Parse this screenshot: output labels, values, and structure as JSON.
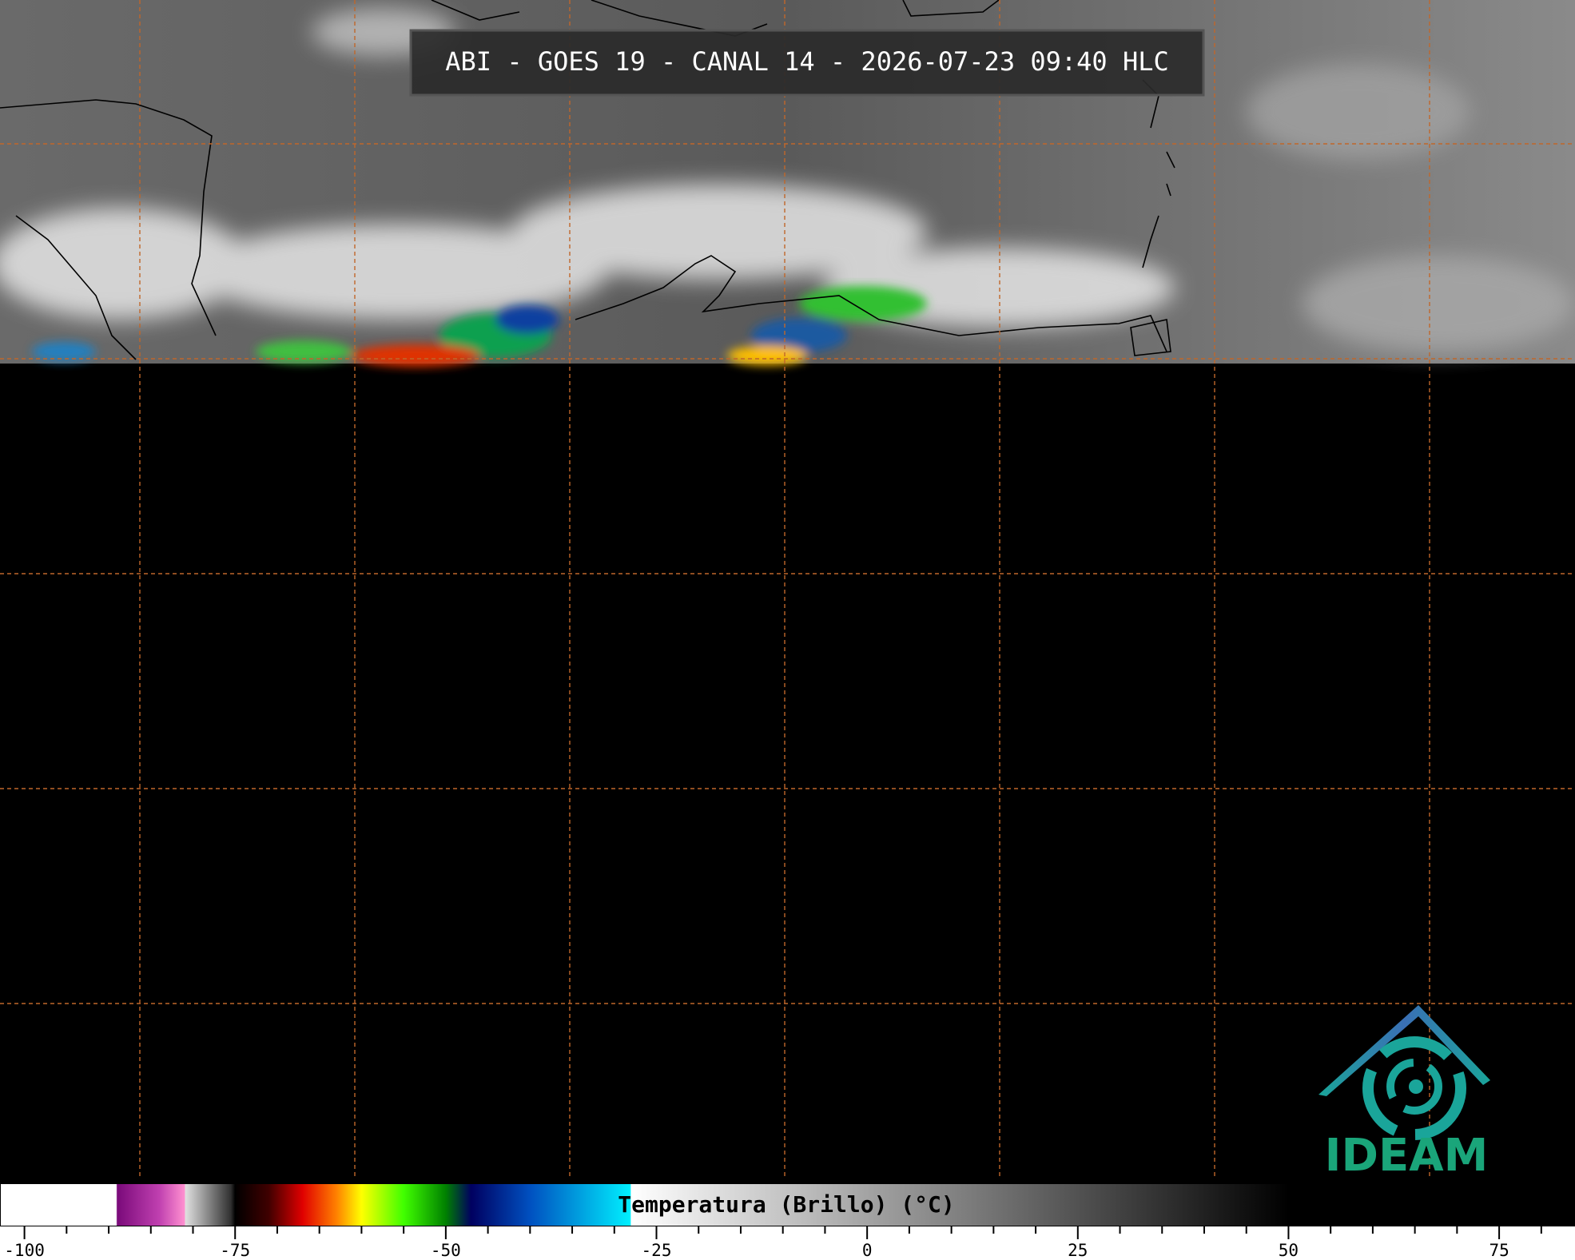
{
  "title": "ABI - GOES 19 - CANAL 14 - 2026-07-23 09:40 HLC",
  "logo": "IDEAM",
  "colorbar": {
    "label": "Temperatura (Brillo) (°C)",
    "lim": [
      -102.9,
      84.0
    ],
    "ticks": [
      -100,
      -75,
      -50,
      -25,
      0,
      25,
      50,
      75
    ],
    "minor_ticks": [
      -95,
      -90,
      -85,
      -80,
      -70,
      -65,
      -60,
      -55,
      -45,
      -40,
      -35,
      -30,
      -20,
      -15,
      -10,
      -5,
      5,
      10,
      15,
      20,
      30,
      35,
      40,
      45,
      55,
      60,
      65,
      70,
      80
    ],
    "colormap": [
      {
        "value": -102.9,
        "color": "#ffffff"
      },
      {
        "value": -89.1,
        "color": "#ffffff"
      },
      {
        "value": -89,
        "color": "#7a0a7a"
      },
      {
        "value": -84,
        "color": "#c040b0"
      },
      {
        "value": -81,
        "color": "#ff90d0"
      },
      {
        "value": -80.9,
        "color": "#e0e0e0"
      },
      {
        "value": -75.5,
        "color": "#303030"
      },
      {
        "value": -75,
        "color": "#000000"
      },
      {
        "value": -71,
        "color": "#400000"
      },
      {
        "value": -67,
        "color": "#e00000"
      },
      {
        "value": -63,
        "color": "#ff8000"
      },
      {
        "value": -60,
        "color": "#ffff00"
      },
      {
        "value": -55,
        "color": "#40ff00"
      },
      {
        "value": -50,
        "color": "#008000"
      },
      {
        "value": -47,
        "color": "#000060"
      },
      {
        "value": -40,
        "color": "#0050c0"
      },
      {
        "value": -28.1,
        "color": "#00f0ff"
      },
      {
        "value": -28,
        "color": "#ffffff"
      },
      {
        "value": 50,
        "color": "#000000"
      },
      {
        "value": 84.0,
        "color": "#000000"
      }
    ]
  }
}
